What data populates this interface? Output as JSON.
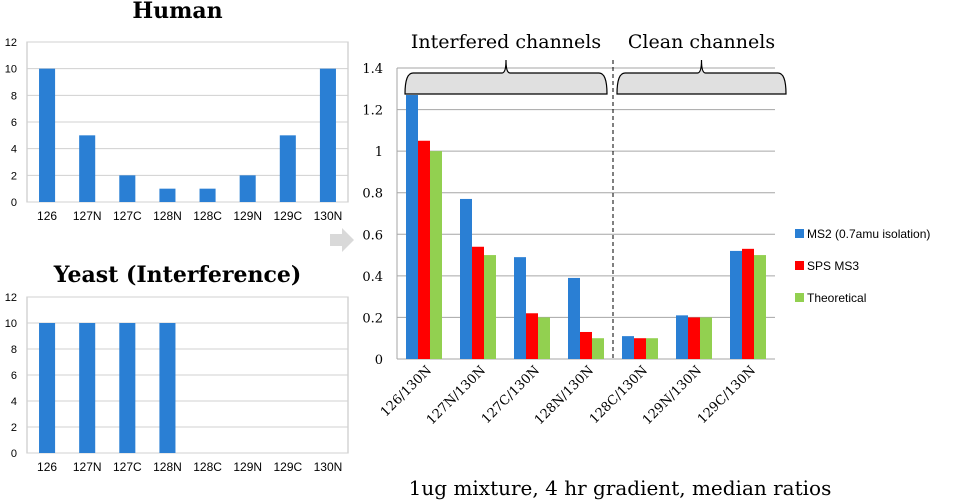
{
  "chart_data": [
    {
      "type": "bar",
      "title": "Human",
      "categories": [
        "126",
        "127N",
        "127C",
        "128N",
        "128C",
        "129N",
        "129C",
        "130N"
      ],
      "values": [
        10,
        5,
        2,
        1,
        1,
        2,
        5,
        10
      ],
      "ylim": [
        0,
        12
      ],
      "yticks": [
        0,
        2,
        4,
        6,
        8,
        10,
        12
      ],
      "color": "#2a7fd4"
    },
    {
      "type": "bar",
      "title": "Yeast (Interference)",
      "categories": [
        "126",
        "127N",
        "127C",
        "128N",
        "128C",
        "129N",
        "129C",
        "130N"
      ],
      "values": [
        10,
        10,
        10,
        10,
        0,
        0,
        0,
        0
      ],
      "ylim": [
        0,
        12
      ],
      "yticks": [
        0,
        2,
        4,
        6,
        8,
        10,
        12
      ],
      "color": "#2a7fd4"
    },
    {
      "type": "bar",
      "title": "",
      "caption": "1ug mixture, 4 hr gradient, median ratios",
      "categories": [
        "126/130N",
        "127N/130N",
        "127C/130N",
        "128N/130N",
        "128C/130N",
        "129N/130N",
        "129C/130N"
      ],
      "series": [
        {
          "name": "MS2 (0.7amu isolation)",
          "color": "#2a7fd4",
          "values": [
            1.27,
            0.77,
            0.49,
            0.39,
            0.11,
            0.21,
            0.52
          ]
        },
        {
          "name": "SPS MS3",
          "color": "#ff0000",
          "values": [
            1.05,
            0.54,
            0.22,
            0.13,
            0.1,
            0.2,
            0.53
          ]
        },
        {
          "name": "Theoretical",
          "color": "#92d050",
          "values": [
            1.0,
            0.5,
            0.2,
            0.1,
            0.1,
            0.2,
            0.5
          ]
        }
      ],
      "ylim": [
        0,
        1.4
      ],
      "yticks": [
        "0",
        "0.2",
        "0.4",
        "0.6",
        "0.8",
        "1",
        "1.2",
        "1.4"
      ],
      "legend": "right",
      "annotations": [
        "Interfered channels",
        "Clean channels"
      ]
    }
  ]
}
